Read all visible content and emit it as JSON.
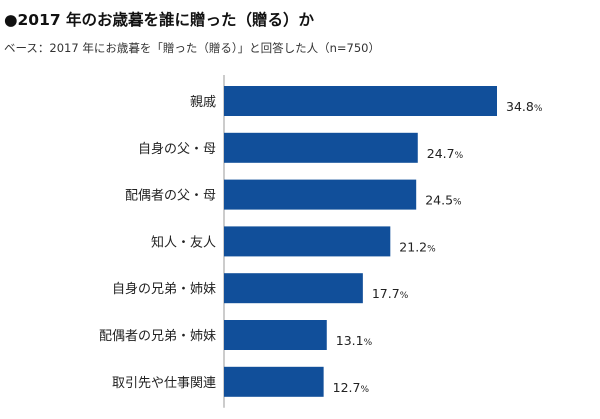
{
  "header": {
    "title": "●2017 年のお歳暮を誰に贈った（贈る）か",
    "subtitle": "ベース：2017 年にお歳暮を「贈った（贈る）」と回答した人（n=750）"
  },
  "chart_data": {
    "type": "bar",
    "orientation": "horizontal",
    "title": "●2017 年のお歳暮を誰に贈った（贈る）か",
    "subtitle": "ベース：2017 年にお歳暮を「贈った（贈る）」と回答した人（n=750）",
    "categories": [
      "親戚",
      "自身の父・母",
      "配偶者の父・母",
      "知人・友人",
      "自身の兄弟・姉妹",
      "配偶者の兄弟・姉妹",
      "取引先や仕事関連"
    ],
    "values": [
      34.8,
      24.7,
      24.5,
      21.2,
      17.7,
      13.1,
      12.7
    ],
    "value_suffix": "%",
    "xlim": [
      0,
      40
    ],
    "grid": false,
    "bar_color": "#114F9A",
    "axis_color": "#999999"
  }
}
